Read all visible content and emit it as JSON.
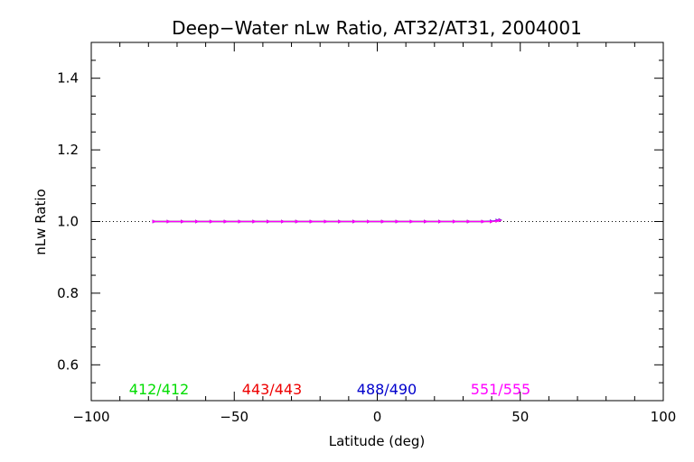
{
  "chart_data": {
    "type": "line",
    "title": "Deep−Water nLw Ratio, AT32/AT31, 2004001",
    "xlabel": "Latitude (deg)",
    "ylabel": "nLw Ratio",
    "xlim": [
      -100,
      100
    ],
    "ylim": [
      0.5,
      1.5
    ],
    "x_ticks": [
      -100,
      -50,
      0,
      50,
      100
    ],
    "x_tick_labels": [
      "−100",
      "−50",
      "0",
      "50",
      "100"
    ],
    "y_ticks": [
      0.6,
      0.8,
      1.0,
      1.2,
      1.4
    ],
    "y_tick_labels": [
      "0.6",
      "0.8",
      "1.0",
      "1.2",
      "1.4"
    ],
    "reference_line": {
      "y": 1.0,
      "style": "dotted"
    },
    "x": [
      -78,
      -73,
      -68,
      -63,
      -58,
      -53,
      -48,
      -43,
      -38,
      -33,
      -28,
      -23,
      -18,
      -13,
      -8,
      -3,
      2,
      7,
      12,
      17,
      22,
      27,
      32,
      37,
      40,
      42,
      43
    ],
    "series": [
      {
        "name": "412/412",
        "color": "#00dd00",
        "values": [
          1.0,
          1.0,
          1.0,
          1.0,
          1.0,
          1.0,
          1.0,
          1.0,
          1.0,
          1.0,
          1.0,
          1.0,
          1.0,
          1.0,
          1.0,
          1.0,
          1.0,
          1.0,
          1.0,
          1.0,
          1.0,
          1.0,
          1.0,
          1.0,
          1.0,
          1.002,
          1.003
        ]
      },
      {
        "name": "443/443",
        "color": "#ee0000",
        "values": [
          1.0,
          1.0,
          1.0,
          1.0,
          1.0,
          1.0,
          1.0,
          1.0,
          1.0,
          1.0,
          1.0,
          1.0,
          1.0,
          1.0,
          1.0,
          1.0,
          1.0,
          1.0,
          1.0,
          1.0,
          1.0,
          1.0,
          1.0,
          1.0,
          1.0,
          1.002,
          1.004
        ]
      },
      {
        "name": "488/490",
        "color": "#0000cc",
        "values": [
          1.0,
          1.0,
          1.0,
          1.0,
          1.0,
          1.0,
          1.0,
          1.0,
          1.0,
          1.0,
          1.0,
          1.0,
          1.0,
          1.0,
          1.0,
          1.0,
          1.0,
          1.0,
          1.0,
          1.0,
          1.0,
          1.0,
          1.0,
          1.0,
          1.001,
          1.003,
          1.004
        ]
      },
      {
        "name": "551/555",
        "color": "#ff00ff",
        "values": [
          1.0,
          1.0,
          1.0,
          1.0,
          1.0,
          1.0,
          1.0,
          1.0,
          1.0,
          1.0,
          1.0,
          1.0,
          1.0,
          1.0,
          1.0,
          1.0,
          1.0,
          1.0,
          1.0,
          1.0,
          1.0,
          1.0,
          1.0,
          1.0,
          1.0,
          1.002,
          1.003
        ]
      }
    ],
    "legend_position": "bottom-inside",
    "grid": false
  }
}
